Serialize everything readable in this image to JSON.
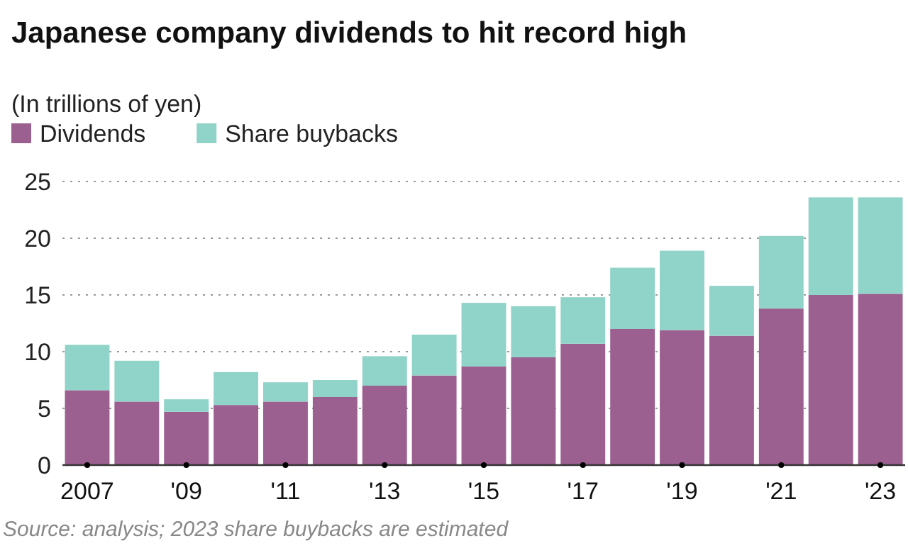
{
  "chart_data": {
    "type": "bar",
    "title": "Japanese company dividends to hit record high",
    "subtitle": "(In trillions of yen)",
    "stacked": true,
    "categories": [
      "2007",
      null,
      "'09",
      null,
      "'11",
      null,
      "'13",
      null,
      "'15",
      null,
      "'17",
      null,
      "'19",
      null,
      "'21",
      null,
      "'23"
    ],
    "series": [
      {
        "name": "Dividends",
        "color": "#9b5f90",
        "values": [
          6.6,
          5.6,
          4.7,
          5.3,
          5.6,
          6.0,
          7.0,
          7.9,
          8.7,
          9.5,
          10.7,
          12.0,
          11.9,
          11.4,
          13.8,
          15.0,
          15.1
        ]
      },
      {
        "name": "Share buybacks",
        "color": "#90d3c8",
        "values": [
          4.0,
          3.6,
          1.1,
          2.9,
          1.7,
          1.5,
          2.6,
          3.6,
          5.6,
          4.5,
          4.1,
          5.4,
          7.0,
          4.4,
          6.4,
          8.6,
          8.5
        ]
      }
    ],
    "ylim": [
      0,
      25
    ],
    "yticks": [
      0,
      5,
      10,
      15,
      20,
      25
    ],
    "grid": "y",
    "legend": "top left",
    "annotations": [
      "Source: analysis; 2023 share buybacks are estimated"
    ]
  }
}
